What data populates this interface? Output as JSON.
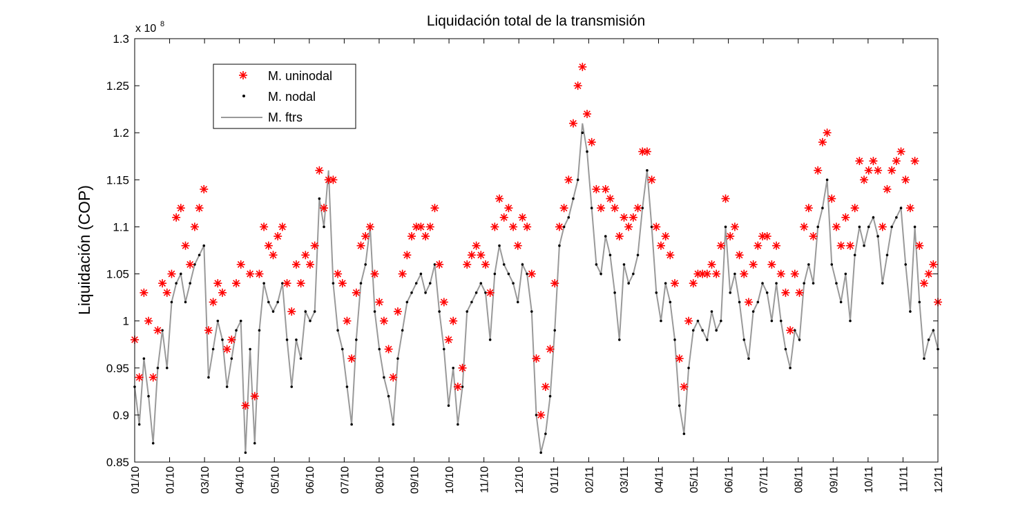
{
  "chart_data": {
    "type": "line",
    "title": "Liquidación total de la transmisión",
    "ylabel": "Liquidación (COP)",
    "xlabel": "",
    "y_exponent": {
      "base": "x 10",
      "power": "8"
    },
    "ylim": [
      0.85,
      1.3
    ],
    "yticks": [
      "0.85",
      "0.9",
      "0.95",
      "1",
      "1.05",
      "1.1",
      "1.15",
      "1.2",
      "1.25",
      "1.3"
    ],
    "xticks": [
      "01/10",
      "01/10",
      "03/10",
      "04/10",
      "05/10",
      "06/10",
      "07/10",
      "08/10",
      "09/10",
      "10/10",
      "11/10",
      "12/10",
      "01/11",
      "02/11",
      "03/11",
      "04/11",
      "05/11",
      "06/11",
      "07/11",
      "08/11",
      "09/11",
      "10/11",
      "11/11",
      "12/11"
    ],
    "grid": false,
    "legend_position": "top-left",
    "colors": {
      "uninodal": "#ff0000",
      "nodal": "#000000",
      "ftrs": "#999999"
    },
    "series": [
      {
        "name": "M. uninodal",
        "marker": "asterisk",
        "values": [
          0.98,
          0.94,
          1.03,
          1.0,
          0.94,
          0.99,
          1.04,
          1.03,
          1.05,
          1.11,
          1.12,
          1.08,
          1.06,
          1.1,
          1.12,
          1.14,
          0.99,
          1.02,
          1.04,
          1.03,
          0.97,
          0.98,
          1.04,
          1.06,
          0.91,
          1.05,
          0.92,
          1.05,
          1.1,
          1.08,
          1.07,
          1.09,
          1.1,
          1.04,
          1.01,
          1.06,
          1.04,
          1.07,
          1.06,
          1.08,
          1.16,
          1.12,
          1.15,
          1.15,
          1.05,
          1.04,
          1.0,
          0.96,
          1.03,
          1.08,
          1.09,
          1.1,
          1.05,
          1.02,
          1.0,
          0.97,
          0.94,
          1.01,
          1.05,
          1.07,
          1.09,
          1.1,
          1.1,
          1.09,
          1.1,
          1.12,
          1.06,
          1.02,
          0.98,
          1.0,
          0.93,
          0.95,
          1.06,
          1.07,
          1.08,
          1.07,
          1.06,
          1.03,
          1.1,
          1.13,
          1.11,
          1.12,
          1.1,
          1.08,
          1.11,
          1.1,
          1.05,
          0.96,
          0.9,
          0.93,
          0.97,
          1.04,
          1.1,
          1.12,
          1.15,
          1.21,
          1.25,
          1.27,
          1.22,
          1.19,
          1.14,
          1.12,
          1.14,
          1.13,
          1.12,
          1.09,
          1.11,
          1.1,
          1.11,
          1.12,
          1.18,
          1.18,
          1.15,
          1.1,
          1.08,
          1.09,
          1.07,
          1.04,
          0.96,
          0.93,
          1.0,
          1.04,
          1.05,
          1.05,
          1.05,
          1.06,
          1.05,
          1.08,
          1.13,
          1.09,
          1.1,
          1.07,
          1.05,
          1.02,
          1.06,
          1.08,
          1.09,
          1.09,
          1.06,
          1.08,
          1.05,
          1.03,
          0.99,
          1.05,
          1.03,
          1.1,
          1.12,
          1.09,
          1.16,
          1.19,
          1.2,
          1.13,
          1.1,
          1.08,
          1.11,
          1.08,
          1.12,
          1.17,
          1.15,
          1.16,
          1.17,
          1.16,
          1.1,
          1.14,
          1.16,
          1.17,
          1.18,
          1.15,
          1.12,
          1.17,
          1.08,
          1.04,
          1.05,
          1.06,
          1.02
        ]
      },
      {
        "name": "M. nodal",
        "marker": "dot",
        "values": [
          0.93,
          0.89,
          0.96,
          0.92,
          0.87,
          0.95,
          0.99,
          0.95,
          1.02,
          1.04,
          1.05,
          1.02,
          1.04,
          1.06,
          1.07,
          1.08,
          0.94,
          0.97,
          1.0,
          0.98,
          0.93,
          0.96,
          0.99,
          1.0,
          0.86,
          0.97,
          0.87,
          0.99,
          1.04,
          1.02,
          1.01,
          1.02,
          1.04,
          0.98,
          0.93,
          0.98,
          0.96,
          1.01,
          1.0,
          1.01,
          1.13,
          1.1,
          1.15,
          1.04,
          0.99,
          0.97,
          0.93,
          0.89,
          0.98,
          1.04,
          1.06,
          1.1,
          1.01,
          0.97,
          0.94,
          0.92,
          0.89,
          0.96,
          0.99,
          1.02,
          1.03,
          1.04,
          1.05,
          1.03,
          1.04,
          1.06,
          1.01,
          0.97,
          0.91,
          0.95,
          0.89,
          0.93,
          1.01,
          1.02,
          1.03,
          1.04,
          1.03,
          0.98,
          1.05,
          1.08,
          1.06,
          1.05,
          1.04,
          1.02,
          1.06,
          1.05,
          1.01,
          0.9,
          0.86,
          0.88,
          0.92,
          0.99,
          1.08,
          1.1,
          1.11,
          1.13,
          1.15,
          1.2,
          1.18,
          1.12,
          1.06,
          1.05,
          1.09,
          1.07,
          1.03,
          0.98,
          1.06,
          1.04,
          1.05,
          1.07,
          1.12,
          1.16,
          1.1,
          1.03,
          1.0,
          1.04,
          1.02,
          0.98,
          0.91,
          0.88,
          0.95,
          0.99,
          1.0,
          0.99,
          0.98,
          1.01,
          0.99,
          1.0,
          1.1,
          1.03,
          1.05,
          1.02,
          0.98,
          0.96,
          1.01,
          1.02,
          1.04,
          1.03,
          1.0,
          1.04,
          1.0,
          0.97,
          0.95,
          0.99,
          0.98,
          1.04,
          1.06,
          1.04,
          1.1,
          1.12,
          1.15,
          1.06,
          1.04,
          1.02,
          1.05,
          1.0,
          1.07,
          1.1,
          1.08,
          1.1,
          1.11,
          1.09,
          1.04,
          1.07,
          1.1,
          1.11,
          1.12,
          1.06,
          1.01,
          1.1,
          1.02,
          0.96,
          0.98,
          0.99,
          0.97
        ]
      },
      {
        "name": "M. ftrs",
        "marker": "line",
        "values": [
          0.93,
          0.89,
          0.96,
          0.92,
          0.87,
          0.95,
          0.99,
          0.95,
          1.02,
          1.04,
          1.05,
          1.02,
          1.04,
          1.06,
          1.07,
          1.08,
          0.94,
          0.97,
          1.0,
          0.98,
          0.93,
          0.96,
          0.99,
          1.0,
          0.86,
          0.97,
          0.87,
          0.99,
          1.04,
          1.02,
          1.01,
          1.02,
          1.04,
          0.98,
          0.93,
          0.98,
          0.96,
          1.01,
          1.0,
          1.01,
          1.13,
          1.1,
          1.16,
          1.04,
          0.99,
          0.97,
          0.93,
          0.89,
          0.98,
          1.04,
          1.06,
          1.1,
          1.01,
          0.97,
          0.94,
          0.92,
          0.89,
          0.96,
          0.99,
          1.02,
          1.03,
          1.04,
          1.05,
          1.03,
          1.04,
          1.06,
          1.01,
          0.97,
          0.91,
          0.95,
          0.89,
          0.93,
          1.01,
          1.02,
          1.03,
          1.04,
          1.03,
          0.98,
          1.05,
          1.08,
          1.06,
          1.05,
          1.04,
          1.02,
          1.06,
          1.05,
          1.01,
          0.9,
          0.86,
          0.88,
          0.92,
          0.99,
          1.08,
          1.1,
          1.11,
          1.13,
          1.15,
          1.21,
          1.18,
          1.12,
          1.06,
          1.05,
          1.09,
          1.07,
          1.03,
          0.98,
          1.06,
          1.04,
          1.05,
          1.07,
          1.12,
          1.16,
          1.1,
          1.03,
          1.0,
          1.04,
          1.02,
          0.98,
          0.91,
          0.88,
          0.95,
          0.99,
          1.0,
          0.99,
          0.98,
          1.01,
          0.99,
          1.0,
          1.1,
          1.03,
          1.05,
          1.02,
          0.98,
          0.96,
          1.01,
          1.02,
          1.04,
          1.03,
          1.0,
          1.04,
          1.0,
          0.97,
          0.95,
          0.99,
          0.98,
          1.04,
          1.06,
          1.04,
          1.1,
          1.12,
          1.15,
          1.06,
          1.04,
          1.02,
          1.05,
          1.0,
          1.07,
          1.1,
          1.08,
          1.1,
          1.11,
          1.09,
          1.04,
          1.07,
          1.1,
          1.11,
          1.12,
          1.06,
          1.01,
          1.1,
          1.02,
          0.96,
          0.98,
          0.99,
          0.97
        ]
      }
    ]
  }
}
